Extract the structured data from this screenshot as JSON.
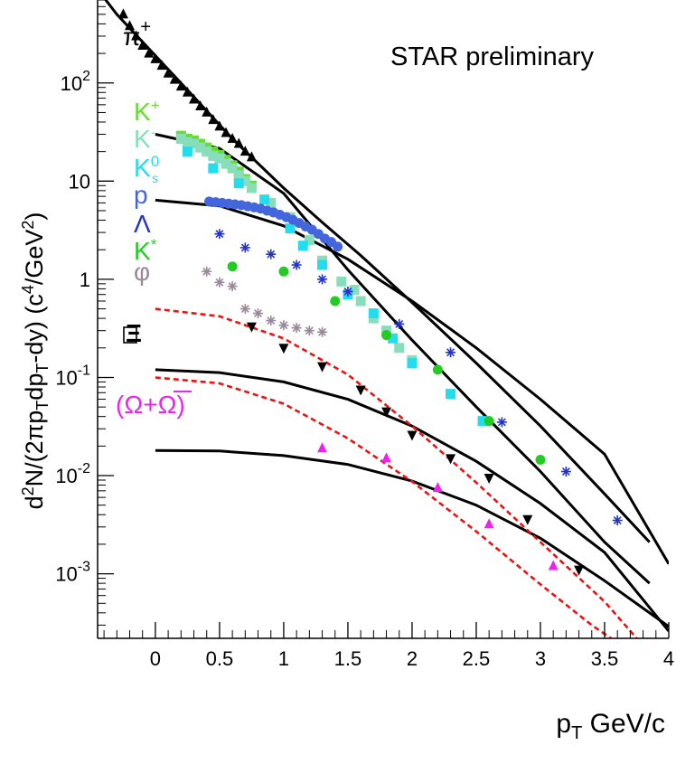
{
  "chart_data": {
    "type": "scatter",
    "annotation": "STAR preliminary",
    "x_axis_label": {
      "main": "p",
      "sub": "T",
      "rest": " GeV/c"
    },
    "y_axis_label": {
      "p1": "d",
      "s1": "2",
      "p2": "N/(2πp",
      "s2": "T",
      "p3": "dp",
      "s3": "T",
      "p4": "-dy) (c",
      "s4": "4",
      "p5": "/GeV",
      "s5": "2",
      "p6": ")"
    },
    "xlim": [
      -0.45,
      4.0
    ],
    "ylim": [
      0.00022,
      700
    ],
    "log_y": true,
    "x_ticks": [
      {
        "v": 0,
        "label": "0"
      },
      {
        "v": 0.5,
        "label": "0.5"
      },
      {
        "v": 1,
        "label": "1"
      },
      {
        "v": 1.5,
        "label": "1.5"
      },
      {
        "v": 2,
        "label": "2"
      },
      {
        "v": 2.5,
        "label": "2.5"
      },
      {
        "v": 3,
        "label": "3"
      },
      {
        "v": 3.5,
        "label": "3.5"
      },
      {
        "v": 4,
        "label": "4"
      }
    ],
    "y_ticks": [
      {
        "v": 0.001,
        "base": "10",
        "exp": "-3"
      },
      {
        "v": 0.01,
        "base": "10",
        "exp": "-2"
      },
      {
        "v": 0.1,
        "base": "10",
        "exp": "-1"
      },
      {
        "v": 1,
        "base": "1",
        "exp": ""
      },
      {
        "v": 10,
        "base": "10",
        "exp": ""
      },
      {
        "v": 100,
        "base": "10",
        "exp": "2"
      }
    ],
    "legend": [
      {
        "base": "π",
        "sup": "+",
        "color": "#000000",
        "series": "pi"
      },
      {
        "base": "K",
        "sup": "+",
        "color": "#66dd33",
        "series": "kplus"
      },
      {
        "base": "K",
        "sup": "-",
        "color": "#88ddbb",
        "series": "kminus"
      },
      {
        "base": "K",
        "sup": "0",
        "sub": "s",
        "color": "#22ddee",
        "series": "ks"
      },
      {
        "base": "p",
        "color": "#4466dd",
        "series": "p"
      },
      {
        "base": "Λ",
        "color": "#2233cc",
        "series": "lambda"
      },
      {
        "base": "K",
        "sup": "*",
        "color": "#22cc22",
        "series": "kstar"
      },
      {
        "base": "φ",
        "color": "#998899",
        "series": "phi"
      },
      {
        "base": "Ξ",
        "color": "#000000",
        "series": "xi"
      },
      {
        "base": "(Ω+Ω)",
        "color": "#ee22ee",
        "series": "omega"
      }
    ],
    "series": [
      {
        "id": "pi",
        "marker": "triangle-up",
        "color": "#000000",
        "points": [
          [
            -0.25,
            500
          ],
          [
            -0.2,
            380
          ],
          [
            -0.15,
            300
          ],
          [
            -0.1,
            240
          ],
          [
            -0.05,
            200
          ],
          [
            0.0,
            175
          ],
          [
            0.05,
            150
          ],
          [
            0.1,
            125
          ],
          [
            0.15,
            108
          ],
          [
            0.2,
            92
          ],
          [
            0.25,
            80
          ],
          [
            0.3,
            68
          ],
          [
            0.35,
            58
          ],
          [
            0.4,
            50
          ],
          [
            0.45,
            42
          ],
          [
            0.5,
            36
          ],
          [
            0.55,
            31
          ],
          [
            0.6,
            27
          ],
          [
            0.65,
            24
          ],
          [
            0.7,
            20
          ],
          [
            0.75,
            17.5
          ]
        ]
      },
      {
        "id": "kplus",
        "marker": "square",
        "color": "#66dd33",
        "points": [
          [
            0.2,
            29
          ],
          [
            0.25,
            27
          ],
          [
            0.3,
            26
          ],
          [
            0.35,
            24
          ],
          [
            0.4,
            22
          ],
          [
            0.45,
            20
          ],
          [
            0.5,
            18.5
          ],
          [
            0.55,
            16.5
          ],
          [
            0.6,
            14.5
          ],
          [
            0.65,
            12.5
          ],
          [
            0.7,
            10.5
          ],
          [
            0.75,
            9
          ]
        ]
      },
      {
        "id": "kminus",
        "marker": "square",
        "color": "#88ddbb",
        "points": [
          [
            0.2,
            27
          ],
          [
            0.25,
            25
          ],
          [
            0.3,
            24
          ],
          [
            0.35,
            22
          ],
          [
            0.4,
            20
          ],
          [
            0.45,
            18
          ],
          [
            0.5,
            17
          ],
          [
            0.55,
            15
          ],
          [
            0.6,
            13.5
          ],
          [
            0.65,
            11.5
          ],
          [
            0.7,
            10
          ],
          [
            0.75,
            8.5
          ],
          [
            0.9,
            6
          ],
          [
            1.05,
            4.3
          ],
          [
            1.2,
            2.5
          ],
          [
            1.3,
            1.55
          ],
          [
            1.45,
            0.95
          ],
          [
            1.55,
            0.78
          ],
          [
            1.6,
            0.6
          ],
          [
            1.7,
            0.4
          ],
          [
            1.8,
            0.3
          ],
          [
            1.9,
            0.2
          ],
          [
            2.0,
            0.15
          ]
        ]
      },
      {
        "id": "ks",
        "marker": "square",
        "color": "#22ddee",
        "points": [
          [
            0.25,
            20
          ],
          [
            0.45,
            13.5
          ],
          [
            0.65,
            9.5
          ],
          [
            0.85,
            6.5
          ],
          [
            1.05,
            3.3
          ],
          [
            1.15,
            2.2
          ],
          [
            1.3,
            1.4
          ],
          [
            1.5,
            0.7
          ],
          [
            1.7,
            0.45
          ],
          [
            1.85,
            0.25
          ],
          [
            2.0,
            0.14
          ],
          [
            2.3,
            0.068
          ],
          [
            2.55,
            0.036
          ]
        ]
      },
      {
        "id": "p",
        "marker": "circle",
        "color": "#4466dd",
        "points": [
          [
            0.42,
            6.2
          ],
          [
            0.47,
            6.1
          ],
          [
            0.52,
            6.0
          ],
          [
            0.57,
            5.9
          ],
          [
            0.62,
            5.8
          ],
          [
            0.67,
            5.7
          ],
          [
            0.72,
            5.55
          ],
          [
            0.77,
            5.4
          ],
          [
            0.82,
            5.25
          ],
          [
            0.87,
            5.0
          ],
          [
            0.92,
            4.8
          ],
          [
            0.97,
            4.55
          ],
          [
            1.02,
            4.3
          ],
          [
            1.07,
            4.05
          ],
          [
            1.12,
            3.75
          ],
          [
            1.17,
            3.45
          ],
          [
            1.22,
            3.2
          ],
          [
            1.27,
            2.9
          ],
          [
            1.32,
            2.6
          ],
          [
            1.37,
            2.4
          ],
          [
            1.42,
            2.15
          ]
        ]
      },
      {
        "id": "lambda",
        "marker": "star",
        "color": "#2233cc",
        "points": [
          [
            0.5,
            2.9
          ],
          [
            0.7,
            2.1
          ],
          [
            0.9,
            1.8
          ],
          [
            1.1,
            1.4
          ],
          [
            1.3,
            1.0
          ],
          [
            1.5,
            0.75
          ],
          [
            1.9,
            0.35
          ],
          [
            2.3,
            0.18
          ],
          [
            2.7,
            0.035
          ],
          [
            3.2,
            0.011
          ],
          [
            3.6,
            0.0035
          ]
        ]
      },
      {
        "id": "kstar",
        "marker": "circle",
        "color": "#22cc22",
        "points": [
          [
            0.6,
            1.35
          ],
          [
            1.0,
            1.2
          ],
          [
            1.4,
            0.6
          ],
          [
            1.8,
            0.27
          ],
          [
            2.2,
            0.12
          ],
          [
            2.6,
            0.036
          ],
          [
            3.0,
            0.0145
          ]
        ]
      },
      {
        "id": "phi",
        "marker": "star",
        "color": "#998899",
        "points": [
          [
            0.4,
            1.2
          ],
          [
            0.5,
            0.93
          ],
          [
            0.6,
            0.85
          ],
          [
            0.7,
            0.5
          ],
          [
            0.8,
            0.45
          ],
          [
            0.9,
            0.38
          ],
          [
            1.0,
            0.34
          ],
          [
            1.1,
            0.32
          ],
          [
            1.2,
            0.3
          ],
          [
            1.3,
            0.29
          ]
        ]
      },
      {
        "id": "xi",
        "marker": "triangle-down",
        "color": "#000000",
        "points": [
          [
            0.75,
            0.33
          ],
          [
            1.0,
            0.2
          ],
          [
            1.3,
            0.13
          ],
          [
            1.6,
            0.075
          ],
          [
            1.8,
            0.045
          ],
          [
            2.0,
            0.026
          ],
          [
            2.3,
            0.015
          ],
          [
            2.6,
            0.0095
          ],
          [
            2.9,
            0.0036
          ],
          [
            3.3,
            0.0011
          ]
        ]
      },
      {
        "id": "omega",
        "marker": "triangle-up",
        "color": "#ee22ee",
        "points": [
          [
            1.3,
            0.019
          ],
          [
            1.8,
            0.015
          ],
          [
            2.2,
            0.0075
          ],
          [
            2.6,
            0.0032
          ],
          [
            3.1,
            0.0012
          ]
        ]
      }
    ],
    "fit_curves": [
      {
        "color": "#000000",
        "style": "solid",
        "points": [
          [
            -0.45,
            900
          ],
          [
            -0.3,
            500
          ],
          [
            0.0,
            190
          ],
          [
            0.3,
            72
          ],
          [
            0.6,
            27
          ],
          [
            1.0,
            8.5
          ],
          [
            1.3,
            3.8
          ],
          [
            1.6,
            1.75
          ],
          [
            2.0,
            0.58
          ],
          [
            2.5,
            0.14
          ],
          [
            3.0,
            0.032
          ],
          [
            3.5,
            0.0065
          ],
          [
            3.85,
            0.0021
          ]
        ]
      },
      {
        "color": "#000000",
        "style": "solid",
        "points": [
          [
            0.0,
            30
          ],
          [
            0.5,
            21.5
          ],
          [
            1.0,
            7.5
          ],
          [
            1.5,
            1.25
          ],
          [
            2.0,
            0.24
          ],
          [
            2.5,
            0.05
          ],
          [
            3.0,
            0.011
          ],
          [
            3.5,
            0.0021
          ],
          [
            3.85,
            0.0008
          ]
        ]
      },
      {
        "color": "#000000",
        "style": "solid",
        "points": [
          [
            0.0,
            6.4
          ],
          [
            0.5,
            5.6
          ],
          [
            1.0,
            3.5
          ],
          [
            1.5,
            1.6
          ],
          [
            2.0,
            0.6
          ],
          [
            2.5,
            0.2
          ],
          [
            3.0,
            0.06
          ],
          [
            3.5,
            0.0165
          ],
          [
            4.0,
            0.00126
          ]
        ]
      },
      {
        "color": "#000000",
        "style": "solid",
        "points": [
          [
            0.0,
            0.12
          ],
          [
            0.5,
            0.112
          ],
          [
            1.0,
            0.09
          ],
          [
            1.5,
            0.06
          ],
          [
            2.0,
            0.032
          ],
          [
            2.5,
            0.014
          ],
          [
            3.0,
            0.0052
          ],
          [
            3.5,
            0.00165
          ],
          [
            4.0,
            0.00026
          ]
        ]
      },
      {
        "color": "#000000",
        "style": "solid",
        "points": [
          [
            0.0,
            0.018
          ],
          [
            0.5,
            0.0178
          ],
          [
            1.0,
            0.016
          ],
          [
            1.5,
            0.013
          ],
          [
            2.0,
            0.0088
          ],
          [
            2.5,
            0.005
          ],
          [
            3.0,
            0.0023
          ],
          [
            3.5,
            0.00085
          ],
          [
            4.0,
            0.00029
          ]
        ]
      },
      {
        "color": "#ee1111",
        "style": "dashed",
        "points": [
          [
            0.0,
            0.5
          ],
          [
            0.5,
            0.42
          ],
          [
            1.0,
            0.25
          ],
          [
            1.5,
            0.107
          ],
          [
            2.0,
            0.032
          ],
          [
            2.5,
            0.0085
          ],
          [
            3.0,
            0.0021
          ],
          [
            3.5,
            0.00052
          ],
          [
            3.75,
            0.00022
          ]
        ]
      },
      {
        "color": "#ee1111",
        "style": "dashed",
        "points": [
          [
            0.0,
            0.1
          ],
          [
            0.5,
            0.087
          ],
          [
            1.0,
            0.054
          ],
          [
            1.5,
            0.024
          ],
          [
            2.0,
            0.0087
          ],
          [
            2.5,
            0.0027
          ],
          [
            3.0,
            0.00078
          ],
          [
            3.4,
            0.0003
          ],
          [
            3.55,
            0.00022
          ]
        ]
      }
    ]
  }
}
